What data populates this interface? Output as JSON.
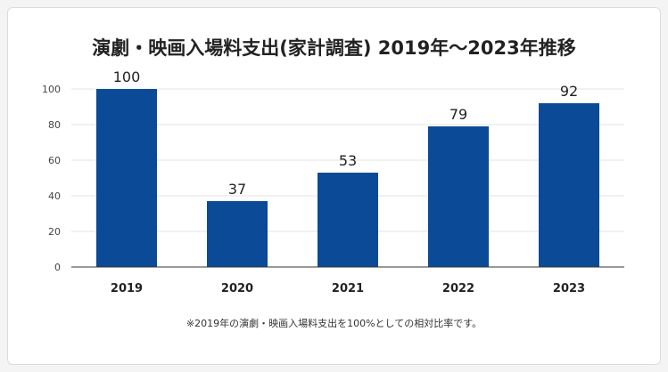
{
  "chart_data": {
    "type": "bar",
    "title": "演劇・映画入場料支出(家計調査) 2019年〜2023年推移",
    "categories": [
      "2019",
      "2020",
      "2021",
      "2022",
      "2023"
    ],
    "values": [
      100,
      37,
      53,
      79,
      92
    ],
    "data_labels": [
      "100",
      "37",
      "53",
      "79",
      "92"
    ],
    "ylim": [
      0,
      100
    ],
    "yticks": [
      0,
      20,
      40,
      60,
      80,
      100
    ],
    "ytick_labels": [
      "0",
      "20",
      "40",
      "60",
      "80",
      "100"
    ],
    "xlabel": "",
    "ylabel": "",
    "grid": true,
    "legend": "none",
    "bar_color": "#0a4a96",
    "note": "※2019年の演劇・映画入場料支出を100%としての相対比率です。"
  }
}
